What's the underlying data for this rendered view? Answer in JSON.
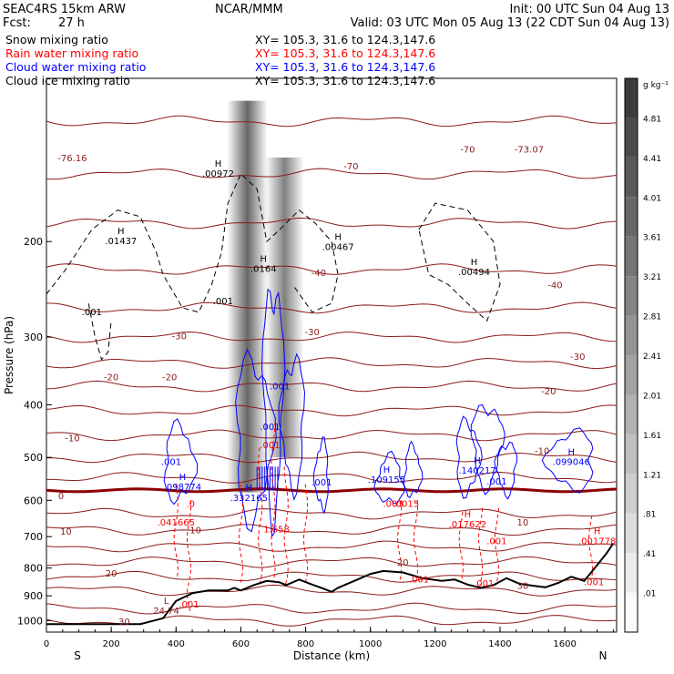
{
  "header": {
    "model": "SEAC4RS 15km ARW",
    "org": "NCAR/MMM",
    "init": "Init: 00 UTC Sun 04 Aug 13",
    "fcst_label": "Fcst:",
    "fcst_value": "27 h",
    "valid": "Valid: 03 UTC Mon 05 Aug 13 (22 CDT Sun 04 Aug 13)"
  },
  "fields": [
    {
      "label": "Snow mixing ratio",
      "xy": "XY= 105.3, 31.6 to 124.3,147.6",
      "color": "#000000"
    },
    {
      "label": "Rain water mixing ratio",
      "xy": "XY= 105.3, 31.6 to 124.3,147.6",
      "color": "#ff0000"
    },
    {
      "label": "Cloud water mixing ratio",
      "xy": "XY= 105.3, 31.6 to 124.3,147.6",
      "color": "#0000ff"
    },
    {
      "label": "Cloud ice mixing ratio",
      "xy": "XY= 105.3, 31.6 to 124.3,147.6",
      "color": "#000000"
    }
  ],
  "colors": {
    "temperature": "#8b1a1a",
    "freezing": "#8b0000",
    "rain": "#ff0000",
    "cloud_water": "#0000ff",
    "ice": "#000000",
    "terrain": "#000000"
  },
  "chart_data": {
    "type": "contour",
    "xlabel": "Distance (km)",
    "ylabel": "Pressure (hPa)",
    "xlim": [
      0,
      1760
    ],
    "ylim": [
      1050,
      100
    ],
    "y_scale": "log",
    "grid": false,
    "x_ticks": [
      "0",
      "200",
      "400",
      "600",
      "800",
      "1000",
      "1200",
      "1400",
      "1600"
    ],
    "y_ticks": [
      "200",
      "300",
      "400",
      "500",
      "600",
      "700",
      "800",
      "900",
      "1000"
    ],
    "x_end_labels": [
      "S",
      "N"
    ],
    "colorbar": {
      "unit": "g kg⁻¹",
      "ticks": [
        "4.81",
        "4.41",
        "4.01",
        "3.61",
        "3.21",
        "2.81",
        "2.41",
        "2.01",
        "1.61",
        "1.21",
        ".81",
        ".41",
        ".01"
      ]
    },
    "snow_columns": [
      {
        "x": 620,
        "p_top": 110,
        "p_bottom": 580,
        "max": 4.8
      },
      {
        "x": 735,
        "p_top": 140,
        "p_bottom": 500,
        "max": 4.0
      }
    ],
    "temperature_labels": [
      {
        "text": "-76.16",
        "x": 80,
        "p": 140
      },
      {
        "text": "-70",
        "x": 940,
        "p": 145
      },
      {
        "text": "-70",
        "x": 1300,
        "p": 135
      },
      {
        "text": "-73.07",
        "x": 1490,
        "p": 135
      },
      {
        "text": "-40",
        "x": 840,
        "p": 228
      },
      {
        "text": "-40",
        "x": 1570,
        "p": 240
      },
      {
        "text": "-30",
        "x": 410,
        "p": 298
      },
      {
        "text": "-30",
        "x": 820,
        "p": 293
      },
      {
        "text": "-30",
        "x": 1640,
        "p": 325
      },
      {
        "text": "-20",
        "x": 200,
        "p": 355
      },
      {
        "text": "-20",
        "x": 380,
        "p": 355
      },
      {
        "text": "-20",
        "x": 1550,
        "p": 377
      },
      {
        "text": "-10",
        "x": 80,
        "p": 460
      },
      {
        "text": "-10",
        "x": 1530,
        "p": 485
      },
      {
        "text": "0",
        "x": 45,
        "p": 588
      },
      {
        "text": "10",
        "x": 60,
        "p": 683
      },
      {
        "text": "10",
        "x": 460,
        "p": 679
      },
      {
        "text": "10",
        "x": 1470,
        "p": 658
      },
      {
        "text": "20",
        "x": 200,
        "p": 817
      },
      {
        "text": "20",
        "x": 1100,
        "p": 779
      },
      {
        "text": "30",
        "x": 240,
        "p": 1003
      },
      {
        "text": "30",
        "x": 1470,
        "p": 860
      }
    ],
    "extrema_labels": [
      {
        "kind": "H",
        "value": ".00972",
        "x": 530,
        "p": 150,
        "color": "ice"
      },
      {
        "kind": "H",
        "value": ".01437",
        "x": 230,
        "p": 200,
        "color": "ice"
      },
      {
        "kind": "H",
        "value": ".0164",
        "x": 670,
        "p": 225,
        "color": "ice"
      },
      {
        "kind": "H",
        "value": ".00467",
        "x": 900,
        "p": 205,
        "color": "ice"
      },
      {
        "kind": "H",
        "value": ".00494",
        "x": 1320,
        "p": 228,
        "color": "ice"
      },
      {
        "kind": "H",
        "value": ".098774",
        "x": 420,
        "p": 568,
        "color": "cloud_water"
      },
      {
        "kind": "H",
        "value": ".332165",
        "x": 625,
        "p": 595,
        "color": "cloud_water"
      },
      {
        "kind": "H",
        "value": ".109155",
        "x": 1050,
        "p": 550,
        "color": "cloud_water"
      },
      {
        "kind": "H",
        "value": ".140217",
        "x": 1330,
        "p": 530,
        "color": "cloud_water"
      },
      {
        "kind": "H",
        "value": ".099046",
        "x": 1620,
        "p": 510,
        "color": "cloud_water"
      },
      {
        "kind": "",
        "value": ".041665",
        "x": 400,
        "p": 660,
        "color": "rain"
      },
      {
        "kind": "",
        "value": "1.658",
        "x": 710,
        "p": 680,
        "color": "rain"
      },
      {
        "kind": "H",
        "value": ".017622",
        "x": 1300,
        "p": 665,
        "color": "rain"
      },
      {
        "kind": "H",
        "value": ".001778",
        "x": 1700,
        "p": 715,
        "color": "rain"
      },
      {
        "kind": "L",
        "value": "24.74",
        "x": 370,
        "p": 960,
        "color": "temperature"
      }
    ],
    "contour_value_labels": [
      {
        "text": ".001",
        "x": 140,
        "p": 270,
        "color": "ice"
      },
      {
        "text": ".001",
        "x": 545,
        "p": 258,
        "color": "ice"
      },
      {
        "text": ".001",
        "x": 720,
        "p": 370,
        "color": "cloud_water"
      },
      {
        "text": ".001",
        "x": 385,
        "p": 510,
        "color": "cloud_water"
      },
      {
        "text": ".001",
        "x": 850,
        "p": 557,
        "color": "cloud_water"
      },
      {
        "text": ".001",
        "x": 1390,
        "p": 555,
        "color": "cloud_water"
      },
      {
        "text": ".001",
        "x": 690,
        "p": 440,
        "color": "cloud_water"
      },
      {
        "text": ".001",
        "x": 690,
        "p": 475,
        "color": "rain"
      },
      {
        "text": ".003",
        "x": 1070,
        "p": 610,
        "color": "rain"
      },
      {
        "text": ".0015",
        "x": 1110,
        "p": 610,
        "color": "rain"
      },
      {
        "text": ".001",
        "x": 1390,
        "p": 715,
        "color": "rain"
      },
      {
        "text": ".001",
        "x": 1150,
        "p": 840,
        "color": "rain"
      },
      {
        "text": ".001",
        "x": 1350,
        "p": 855,
        "color": "rain"
      },
      {
        "text": ".001",
        "x": 1690,
        "p": 850,
        "color": "rain"
      },
      {
        "text": ".001",
        "x": 440,
        "p": 935,
        "color": "rain"
      },
      {
        "text": ".0",
        "x": 445,
        "p": 610,
        "color": "rain"
      }
    ],
    "terrain": [
      [
        0,
        1015
      ],
      [
        290,
        1015
      ],
      [
        360,
        990
      ],
      [
        400,
        920
      ],
      [
        450,
        890
      ],
      [
        500,
        880
      ],
      [
        560,
        880
      ],
      [
        580,
        870
      ],
      [
        600,
        880
      ],
      [
        640,
        860
      ],
      [
        680,
        845
      ],
      [
        720,
        850
      ],
      [
        740,
        860
      ],
      [
        780,
        840
      ],
      [
        820,
        858
      ],
      [
        860,
        875
      ],
      [
        880,
        885
      ],
      [
        900,
        870
      ],
      [
        960,
        840
      ],
      [
        1000,
        820
      ],
      [
        1040,
        810
      ],
      [
        1100,
        815
      ],
      [
        1160,
        835
      ],
      [
        1220,
        845
      ],
      [
        1260,
        840
      ],
      [
        1300,
        858
      ],
      [
        1340,
        870
      ],
      [
        1380,
        860
      ],
      [
        1420,
        835
      ],
      [
        1460,
        855
      ],
      [
        1500,
        862
      ],
      [
        1540,
        868
      ],
      [
        1580,
        852
      ],
      [
        1620,
        830
      ],
      [
        1660,
        845
      ],
      [
        1700,
        790
      ],
      [
        1730,
        750
      ],
      [
        1750,
        720
      ]
    ]
  }
}
